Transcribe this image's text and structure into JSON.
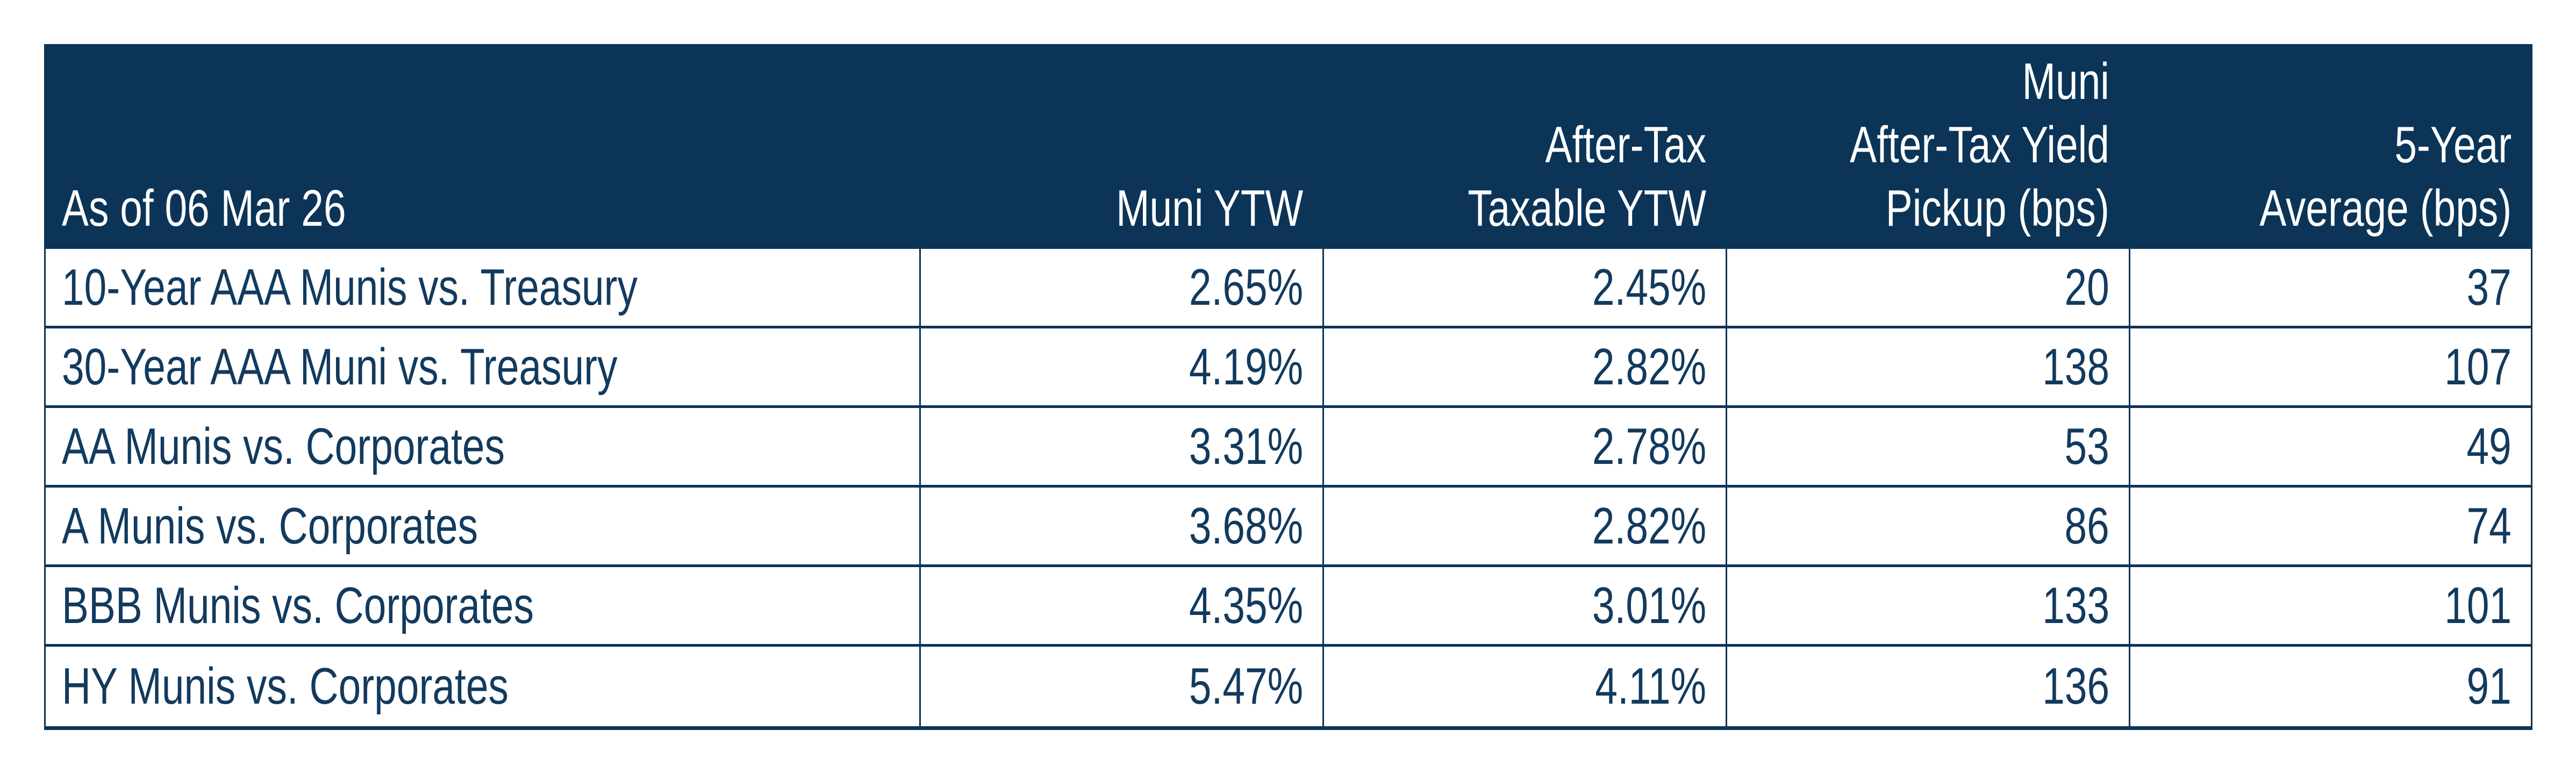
{
  "colors": {
    "navy": "#0B3457",
    "header_text": "#FFFFFF",
    "body_text": "#123A5E",
    "background": "#FFFFFF"
  },
  "table": {
    "columns": [
      {
        "key": "label",
        "header": "As of 06 Mar 26",
        "align": "left"
      },
      {
        "key": "muni_ytw",
        "header": "Muni YTW",
        "align": "right"
      },
      {
        "key": "after_tax_taxable_ytw",
        "header": "After-Tax\nTaxable YTW",
        "align": "right"
      },
      {
        "key": "muni_after_tax_yield_pickup_bps",
        "header": "Muni\nAfter-Tax Yield\nPickup (bps)",
        "align": "right"
      },
      {
        "key": "five_year_average_bps",
        "header": "5-Year\nAverage (bps)",
        "align": "right"
      }
    ],
    "rows": [
      {
        "label": "10-Year AAA Munis vs. Treasury",
        "muni_ytw": "2.65%",
        "after_tax_taxable_ytw": "2.45%",
        "muni_after_tax_yield_pickup_bps": "20",
        "five_year_average_bps": "37"
      },
      {
        "label": "30-Year AAA Muni vs. Treasury",
        "muni_ytw": "4.19%",
        "after_tax_taxable_ytw": "2.82%",
        "muni_after_tax_yield_pickup_bps": "138",
        "five_year_average_bps": "107"
      },
      {
        "label": "AA Munis vs. Corporates",
        "muni_ytw": "3.31%",
        "after_tax_taxable_ytw": "2.78%",
        "muni_after_tax_yield_pickup_bps": "53",
        "five_year_average_bps": "49"
      },
      {
        "label": "A Munis vs. Corporates",
        "muni_ytw": "3.68%",
        "after_tax_taxable_ytw": "2.82%",
        "muni_after_tax_yield_pickup_bps": "86",
        "five_year_average_bps": "74"
      },
      {
        "label": "BBB Munis vs. Corporates",
        "muni_ytw": "4.35%",
        "after_tax_taxable_ytw": "3.01%",
        "muni_after_tax_yield_pickup_bps": "133",
        "five_year_average_bps": "101"
      },
      {
        "label": "HY Munis vs. Corporates",
        "muni_ytw": "5.47%",
        "after_tax_taxable_ytw": "4.11%",
        "muni_after_tax_yield_pickup_bps": "136",
        "five_year_average_bps": "91"
      }
    ]
  },
  "chart_data": {
    "type": "table",
    "title": "Muni yields vs. taxable alternatives as of 06 Mar 26",
    "columns": [
      "As of 06 Mar 26",
      "Muni YTW",
      "After-Tax Taxable YTW",
      "Muni After-Tax Yield Pickup (bps)",
      "5-Year Average (bps)"
    ],
    "rows": [
      [
        "10-Year AAA Munis vs. Treasury",
        "2.65%",
        "2.45%",
        20,
        37
      ],
      [
        "30-Year AAA Muni vs. Treasury",
        "4.19%",
        "2.82%",
        138,
        107
      ],
      [
        "AA Munis vs. Corporates",
        "3.31%",
        "2.78%",
        53,
        49
      ],
      [
        "A Munis vs. Corporates",
        "3.68%",
        "2.82%",
        86,
        74
      ],
      [
        "BBB Munis vs. Corporates",
        "4.35%",
        "3.01%",
        133,
        101
      ],
      [
        "HY Munis vs. Corporates",
        "5.47%",
        "4.11%",
        136,
        91
      ]
    ]
  }
}
